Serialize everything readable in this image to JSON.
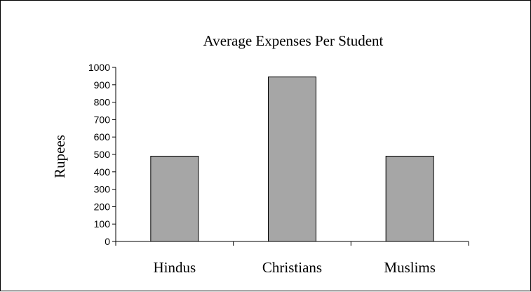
{
  "chart_data": {
    "type": "bar",
    "title": "Average Expenses Per Student",
    "xlabel": "",
    "ylabel": "Rupees",
    "categories": [
      "Hindus",
      "Christians",
      "Muslims"
    ],
    "values": [
      490,
      945,
      490
    ],
    "ylim": [
      0,
      1000
    ],
    "yticks": [
      "0",
      "100",
      "200",
      "300",
      "400",
      "500",
      "600",
      "700",
      "800",
      "900",
      "1000"
    ],
    "grid": false,
    "legend": "none",
    "bar_color": "#a6a6a6",
    "bar_edge_color": "#000000"
  }
}
